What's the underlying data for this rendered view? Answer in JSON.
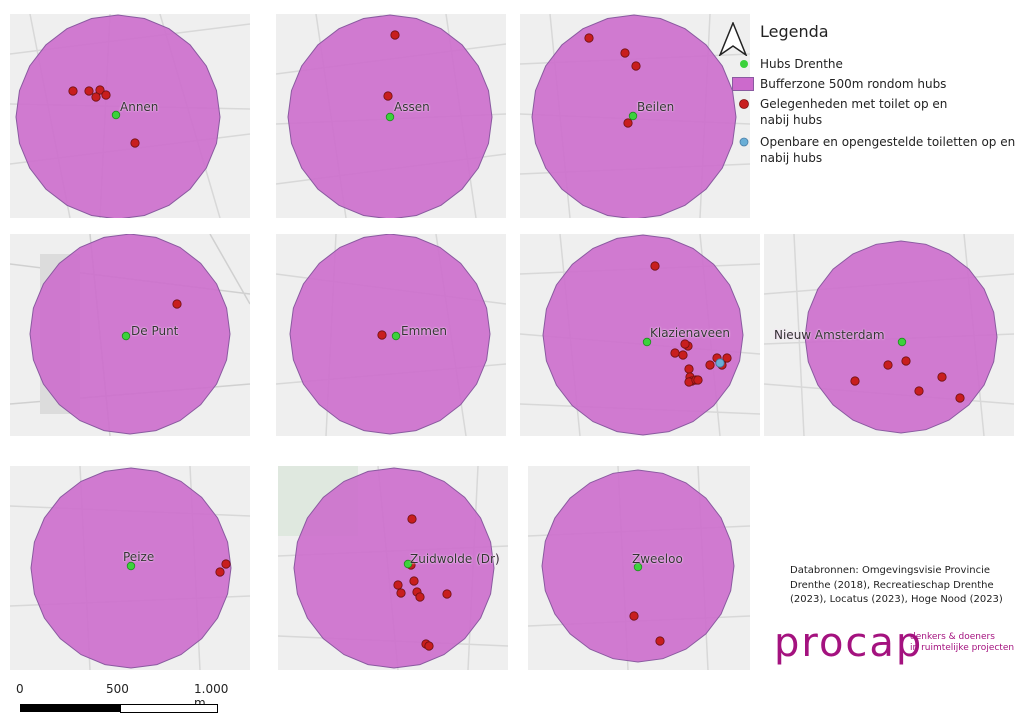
{
  "colors": {
    "buffer_fill": "#cc6acc",
    "buffer_stroke": "#8a5aa0",
    "hub": "#3cd23c",
    "toilet_venue": "#c81e1e",
    "public_toilet": "#6aaed6",
    "logo": "#a4127f"
  },
  "legend": {
    "title": "Legenda",
    "north_arrow_icon": "north-arrow",
    "items": [
      {
        "symbol": "dot-green",
        "label": "Hubs Drenthe"
      },
      {
        "symbol": "rect-purple",
        "label": "Bufferzone 500m rondom hubs"
      },
      {
        "symbol": "dot-red",
        "label": "Gelegenheden met toilet op en nabij hubs"
      },
      {
        "symbol": "dot-blue",
        "label": "Openbare en opengestelde toiletten op en nabij hubs"
      }
    ]
  },
  "maps": [
    {
      "name": "Annen"
    },
    {
      "name": "Assen"
    },
    {
      "name": "Beilen"
    },
    {
      "name": "De Punt"
    },
    {
      "name": "Emmen"
    },
    {
      "name": "Klazienaveen"
    },
    {
      "name": "Nieuw Amsterdam"
    },
    {
      "name": "Peize"
    },
    {
      "name": "Zuidwolde (Dr)"
    },
    {
      "name": "Zweeloo"
    }
  ],
  "sources": "Databronnen: Omgevingsvisie Provincie Drenthe (2018), Recreatieschap Drenthe (2023), Locatus (2023), Hoge Nood (2023)",
  "logo": {
    "word": "procap",
    "tagline_1": "denkers & doeners",
    "tagline_2": "in ruimtelijke projecten"
  },
  "scalebar": {
    "ticks": [
      "0",
      "500",
      "1.000 m"
    ]
  }
}
